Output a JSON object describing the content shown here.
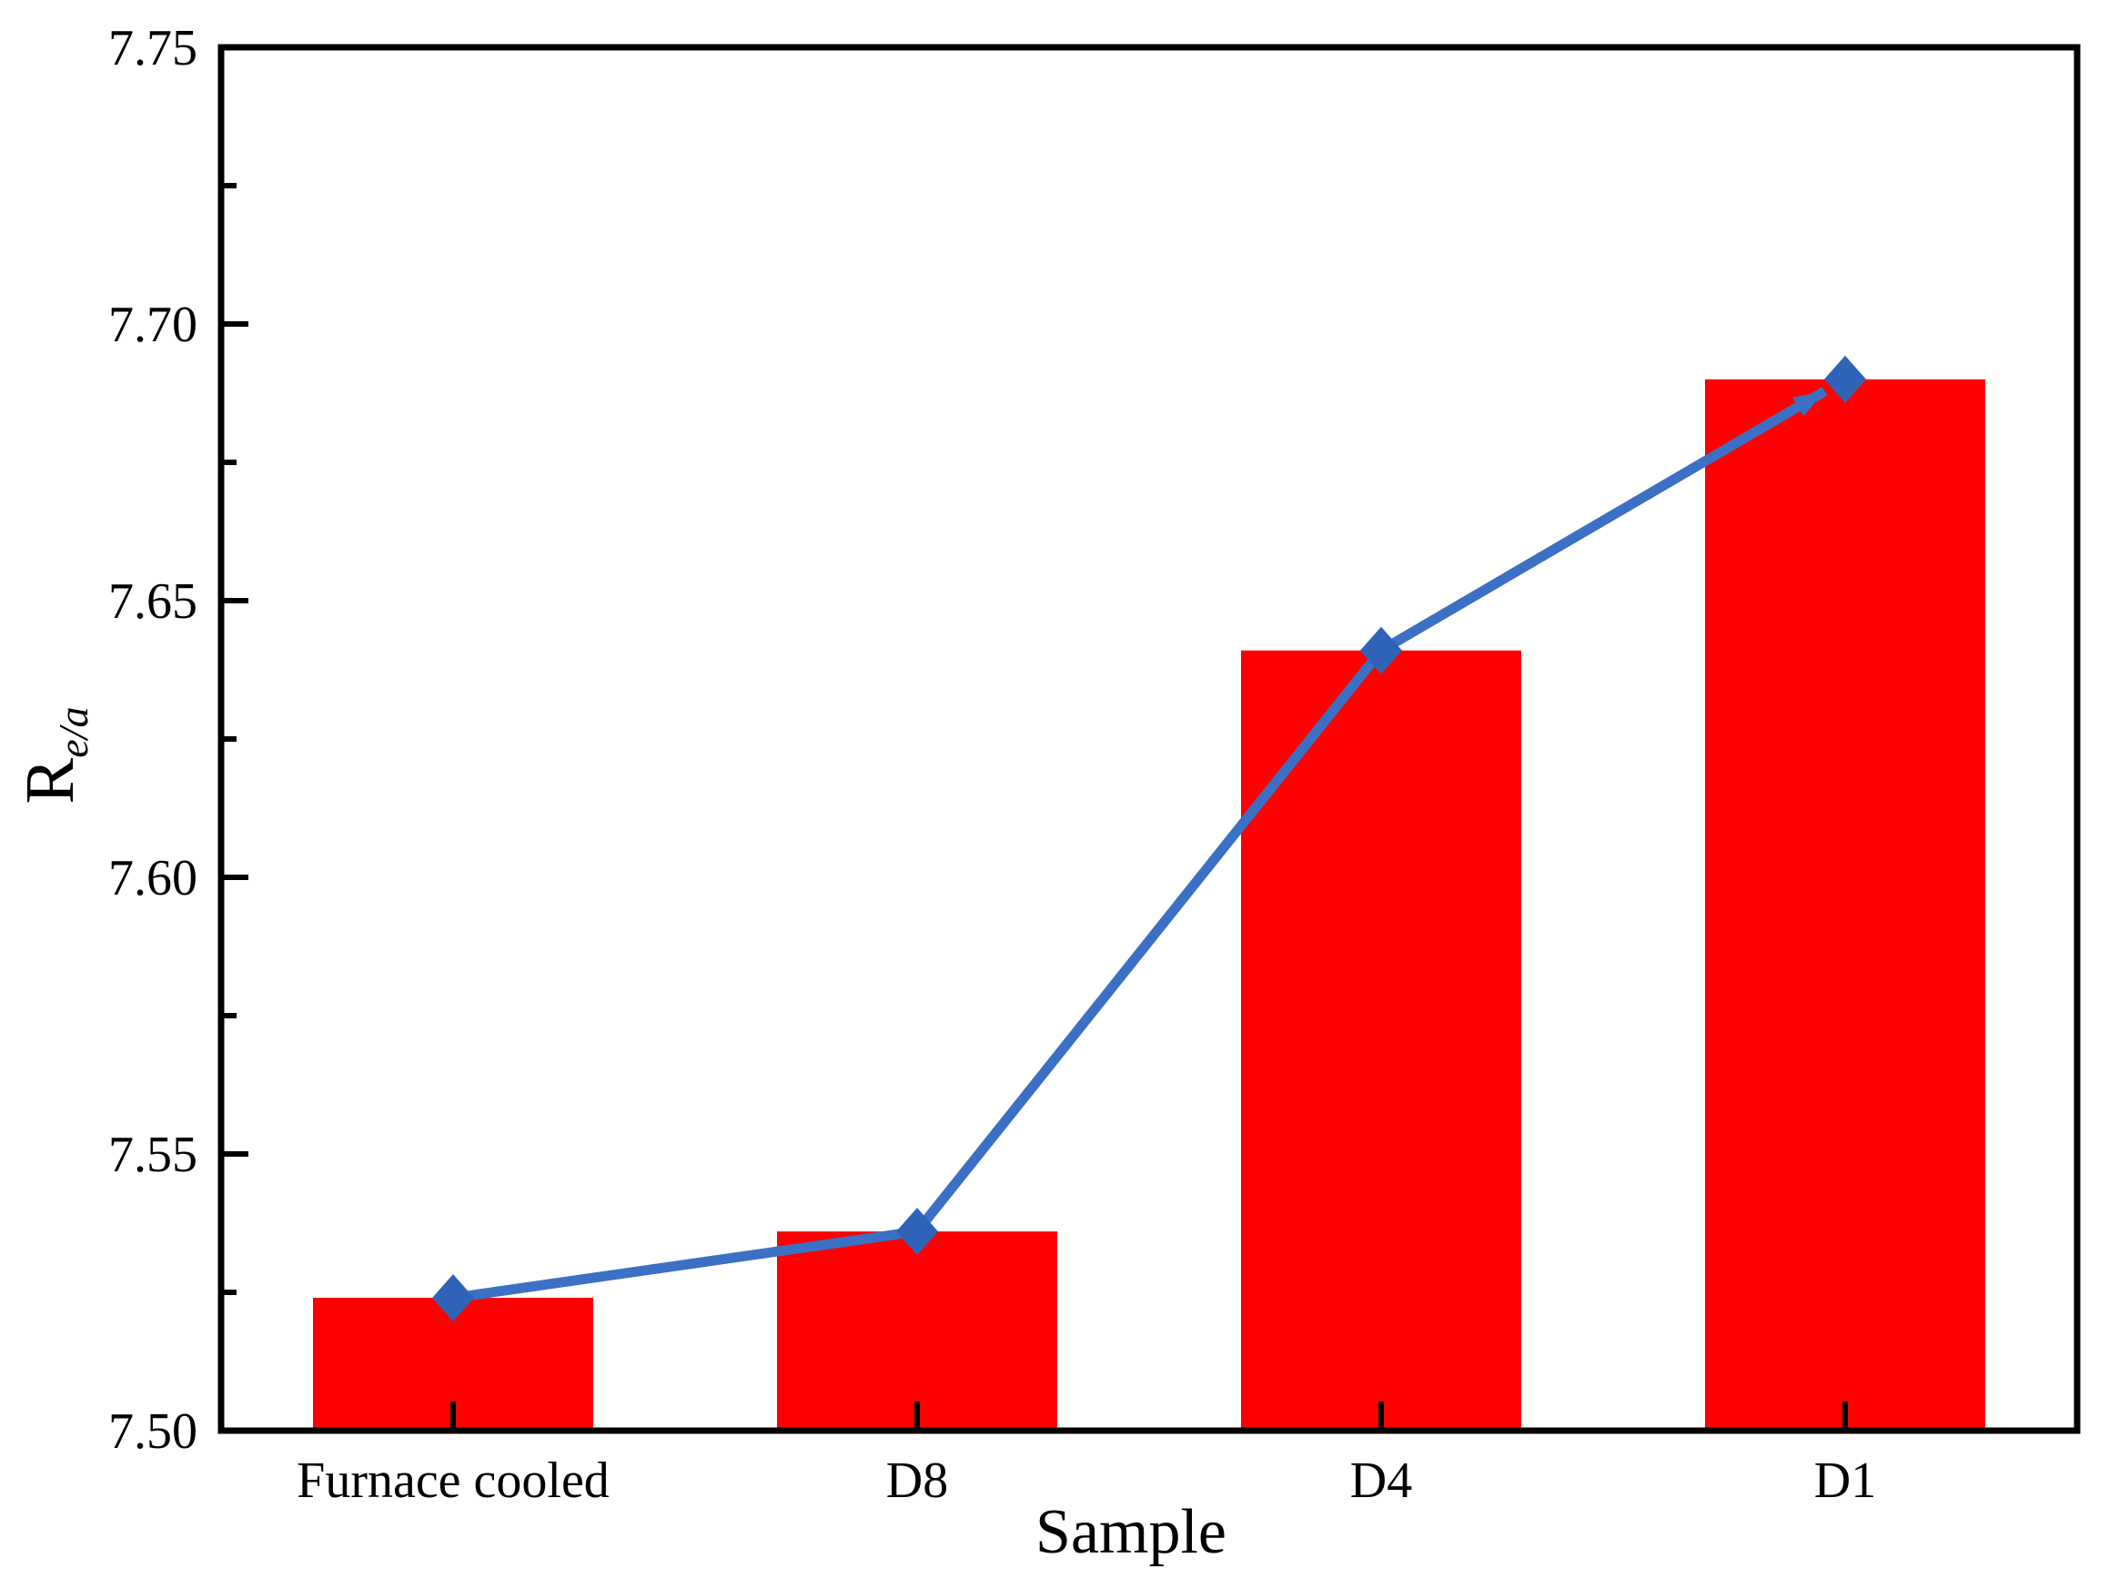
{
  "chart_data": {
    "type": "bar",
    "subtype": "bar-with-line-overlay",
    "title": "",
    "categories": [
      "Furnace cooled",
      "D8",
      "D4",
      "D1"
    ],
    "series": [
      {
        "name": "bars",
        "type": "bar",
        "values": [
          7.524,
          7.536,
          7.641,
          7.69
        ],
        "color": "#FF0000"
      },
      {
        "name": "line",
        "type": "line",
        "values": [
          7.524,
          7.536,
          7.641,
          7.69
        ],
        "color": "#3B70C4",
        "marker": "diamond",
        "marker_color": "#2F63B8",
        "arrow_at_end": true
      }
    ],
    "xlabel": "Sample",
    "ylabel_main": "R",
    "ylabel_subscript": "e/a",
    "ylim": [
      7.5,
      7.75
    ],
    "y_major_step": 0.05,
    "y_minor_step": 0.025,
    "y_tick_labels": [
      "7.50",
      "7.55",
      "7.60",
      "7.65",
      "7.70",
      "7.75"
    ],
    "x_tick_labels": [
      "Furnace cooled",
      "D8",
      "D4",
      "D1"
    ],
    "grid": false,
    "legend_visible": false,
    "frame": "box",
    "axis_color": "#000000",
    "text_color": "#000000",
    "background_color": "#FFFFFF"
  }
}
